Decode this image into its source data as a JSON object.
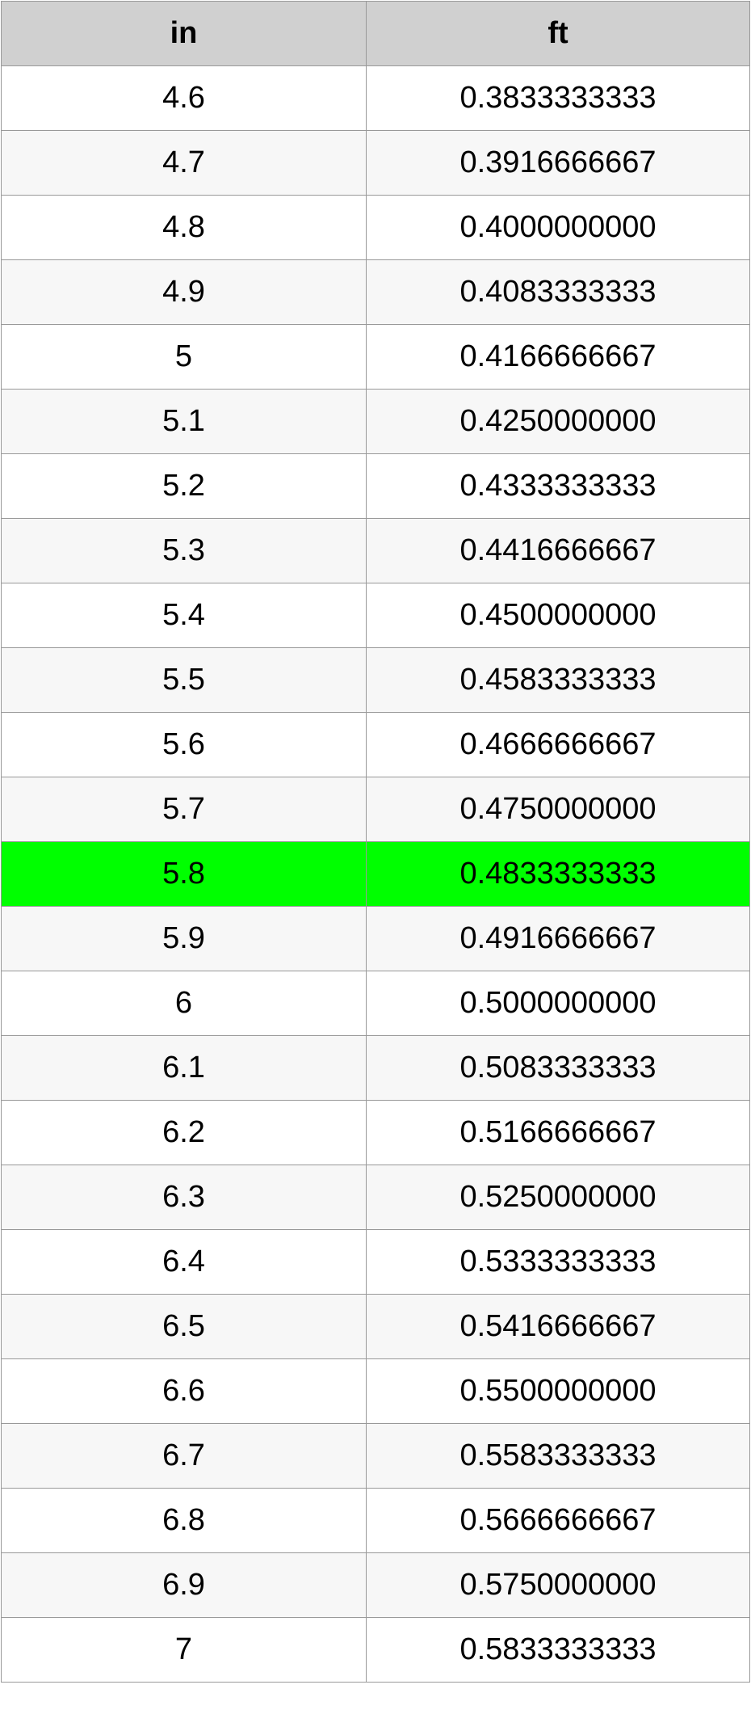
{
  "table": {
    "header": [
      "in",
      "ft"
    ],
    "rows": [
      [
        "4.6",
        "0.3833333333"
      ],
      [
        "4.7",
        "0.3916666667"
      ],
      [
        "4.8",
        "0.4000000000"
      ],
      [
        "4.9",
        "0.4083333333"
      ],
      [
        "5",
        "0.4166666667"
      ],
      [
        "5.1",
        "0.4250000000"
      ],
      [
        "5.2",
        "0.4333333333"
      ],
      [
        "5.3",
        "0.4416666667"
      ],
      [
        "5.4",
        "0.4500000000"
      ],
      [
        "5.5",
        "0.4583333333"
      ],
      [
        "5.6",
        "0.4666666667"
      ],
      [
        "5.7",
        "0.4750000000"
      ],
      [
        "5.8",
        "0.4833333333"
      ],
      [
        "5.9",
        "0.4916666667"
      ],
      [
        "6",
        "0.5000000000"
      ],
      [
        "6.1",
        "0.5083333333"
      ],
      [
        "6.2",
        "0.5166666667"
      ],
      [
        "6.3",
        "0.5250000000"
      ],
      [
        "6.4",
        "0.5333333333"
      ],
      [
        "6.5",
        "0.5416666667"
      ],
      [
        "6.6",
        "0.5500000000"
      ],
      [
        "6.7",
        "0.5583333333"
      ],
      [
        "6.8",
        "0.5666666667"
      ],
      [
        "6.9",
        "0.5750000000"
      ],
      [
        "7",
        "0.5833333333"
      ]
    ]
  }
}
